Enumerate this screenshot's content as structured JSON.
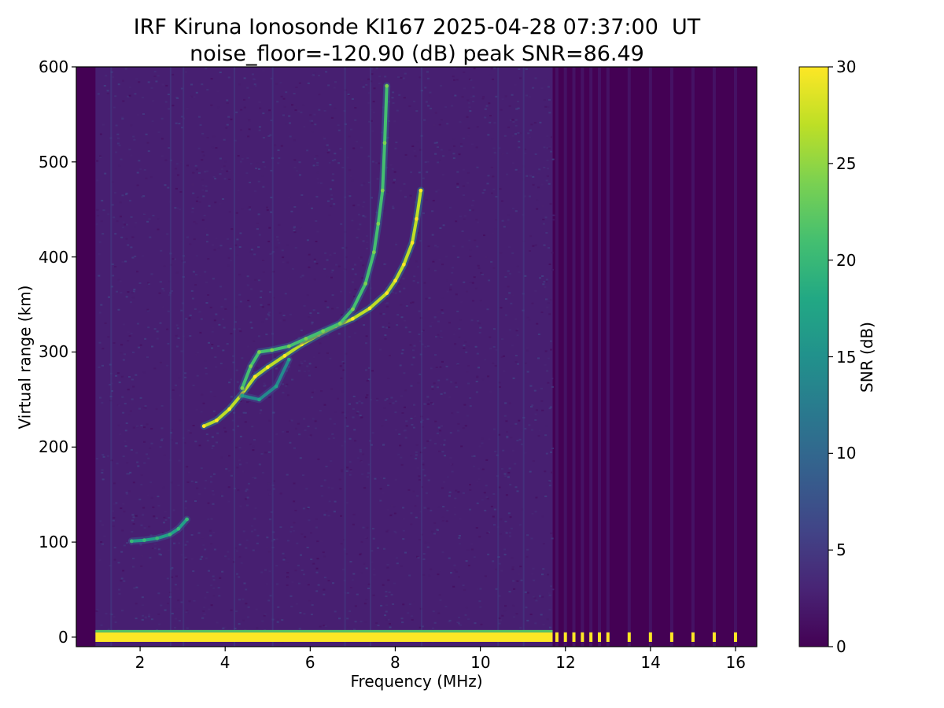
{
  "chart_data": {
    "type": "heatmap",
    "title": "IRF Kiruna Ionosonde KI167 2025-04-28 07:37:00  UT",
    "subtitle": "noise_floor=-120.90 (dB) peak SNR=86.49",
    "xlabel": "Frequency (MHz)",
    "ylabel": "Virtual range (km)",
    "xlim": [
      0.5,
      16.5
    ],
    "ylim": [
      -10,
      600
    ],
    "x_ticks": [
      2,
      4,
      6,
      8,
      10,
      12,
      14,
      16
    ],
    "x_tick_labels": [
      "2",
      "4",
      "6",
      "8",
      "10",
      "12",
      "14",
      "16"
    ],
    "y_ticks": [
      0,
      100,
      200,
      300,
      400,
      500,
      600
    ],
    "y_tick_labels": [
      "0",
      "100",
      "200",
      "300",
      "400",
      "500",
      "600"
    ],
    "colorbar": {
      "label": "SNR (dB)",
      "colormap": "viridis",
      "range": [
        0,
        30
      ],
      "ticks": [
        0,
        5,
        10,
        15,
        20,
        25,
        30
      ],
      "tick_labels": [
        "0",
        "5",
        "10",
        "15",
        "20",
        "25",
        "30"
      ]
    },
    "frequency_coverage_mhz": [
      0.95,
      16.0
    ],
    "ground_band": {
      "range_km": [
        -5,
        5
      ],
      "snr_db": 30
    },
    "discrete_channels_mhz": [
      11.8,
      12.0,
      12.2,
      12.4,
      12.6,
      12.8,
      13.0,
      13.5,
      14.0,
      14.5,
      15.0,
      15.5,
      16.0
    ],
    "traces": [
      {
        "frequency_mhz": [
          1.8,
          2.1,
          2.4,
          2.7,
          2.9,
          3.1
        ],
        "range_km": [
          101,
          102,
          104,
          108,
          114,
          124
        ],
        "snr_db": 17
      },
      {
        "frequency_mhz": [
          3.5,
          3.8,
          4.1,
          4.4,
          4.7,
          5.0,
          5.4,
          5.8,
          6.2,
          6.6,
          7.0,
          7.4,
          7.8,
          8.0,
          8.2,
          8.4,
          8.5,
          8.6
        ],
        "range_km": [
          222,
          228,
          240,
          256,
          274,
          284,
          296,
          308,
          318,
          327,
          335,
          346,
          362,
          375,
          392,
          415,
          440,
          470
        ],
        "snr_db": 27
      },
      {
        "frequency_mhz": [
          4.4,
          4.6,
          4.8,
          5.1,
          5.5,
          5.9,
          6.3,
          6.7,
          7.0,
          7.3,
          7.5,
          7.6,
          7.7,
          7.75,
          7.8
        ],
        "range_km": [
          262,
          285,
          300,
          302,
          306,
          314,
          322,
          330,
          345,
          372,
          405,
          435,
          470,
          520,
          580
        ],
        "snr_db": 21
      },
      {
        "frequency_mhz": [
          4.4,
          4.8,
          5.2,
          5.5
        ],
        "range_km": [
          254,
          250,
          264,
          292
        ],
        "snr_db": 14
      }
    ]
  }
}
